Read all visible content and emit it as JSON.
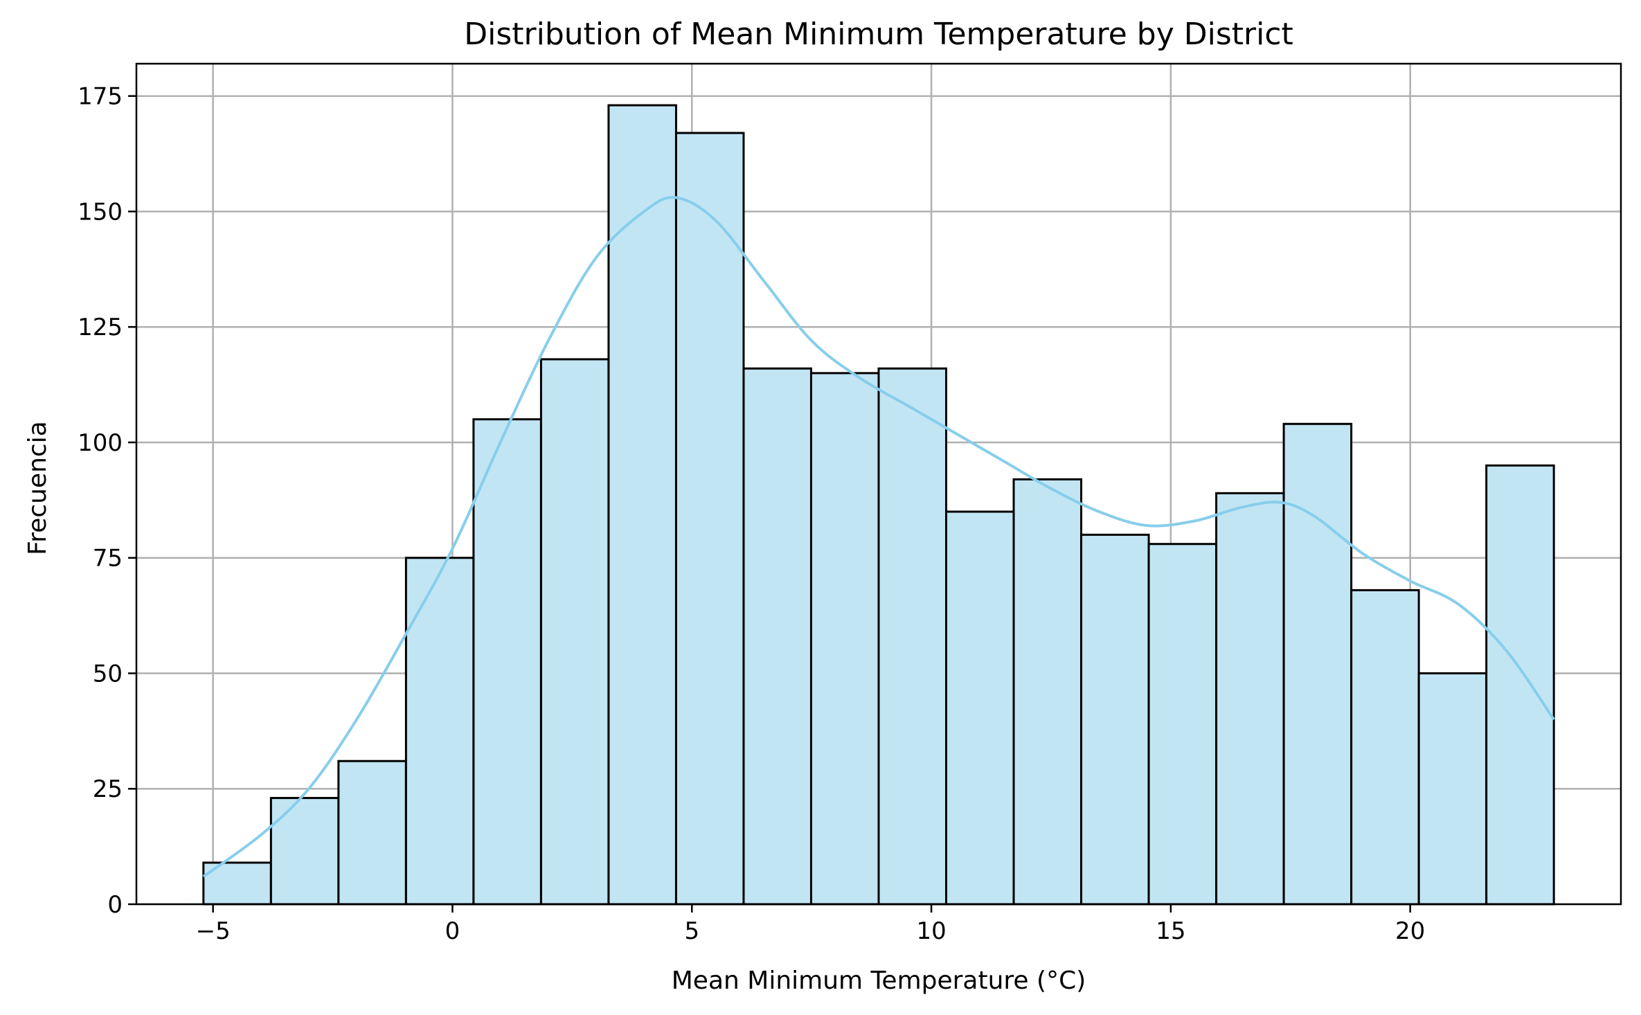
{
  "chart_data": {
    "type": "bar",
    "subtype": "histogram-with-kde",
    "title": "Distribution of Mean Minimum Temperature by District",
    "xlabel": "Mean Minimum Temperature (°C)",
    "ylabel": "Frecuencia",
    "xlim": [
      -6.6,
      24.4
    ],
    "ylim": [
      0,
      182
    ],
    "grid": true,
    "legend": "none",
    "x_ticks": [
      {
        "value": -5,
        "label": "−5"
      },
      {
        "value": 0,
        "label": "0"
      },
      {
        "value": 5,
        "label": "5"
      },
      {
        "value": 10,
        "label": "10"
      },
      {
        "value": 15,
        "label": "15"
      },
      {
        "value": 20,
        "label": "20"
      }
    ],
    "y_ticks": [
      {
        "value": 0,
        "label": "0"
      },
      {
        "value": 25,
        "label": "25"
      },
      {
        "value": 50,
        "label": "50"
      },
      {
        "value": 75,
        "label": "75"
      },
      {
        "value": 100,
        "label": "100"
      },
      {
        "value": 125,
        "label": "125"
      },
      {
        "value": 150,
        "label": "150"
      },
      {
        "value": 175,
        "label": "175"
      }
    ],
    "bin_edges": [
      -5.2,
      -3.79,
      -2.38,
      -0.97,
      0.44,
      1.85,
      3.26,
      4.67,
      6.08,
      7.49,
      8.9,
      10.31,
      11.72,
      13.13,
      14.54,
      15.95,
      17.36,
      18.77,
      20.18,
      21.59,
      23.0
    ],
    "counts": [
      9,
      23,
      31,
      75,
      105,
      118,
      173,
      167,
      116,
      115,
      116,
      85,
      92,
      80,
      78,
      89,
      104,
      68,
      50,
      95
    ],
    "kde": {
      "x": [
        -5.2,
        -4.0,
        -3.0,
        -2.0,
        -1.0,
        0.0,
        1.0,
        2.0,
        3.0,
        4.0,
        4.67,
        5.5,
        6.5,
        7.5,
        8.5,
        9.5,
        10.5,
        11.5,
        12.5,
        13.5,
        14.5,
        15.5,
        16.5,
        17.3,
        18.0,
        19.0,
        20.0,
        21.0,
        22.0,
        23.0
      ],
      "y": [
        6,
        15,
        25,
        40,
        58,
        77,
        100,
        122,
        140,
        150,
        153,
        148,
        135,
        122,
        114,
        108,
        102,
        96,
        90,
        85,
        82,
        83,
        86,
        87,
        84,
        76,
        70,
        65,
        55,
        40
      ]
    },
    "colors": {
      "bar_fill": "#c2e5f4",
      "bar_edge": "#000000",
      "kde_line": "#87ceeb",
      "grid": "#b0b0b0"
    }
  }
}
